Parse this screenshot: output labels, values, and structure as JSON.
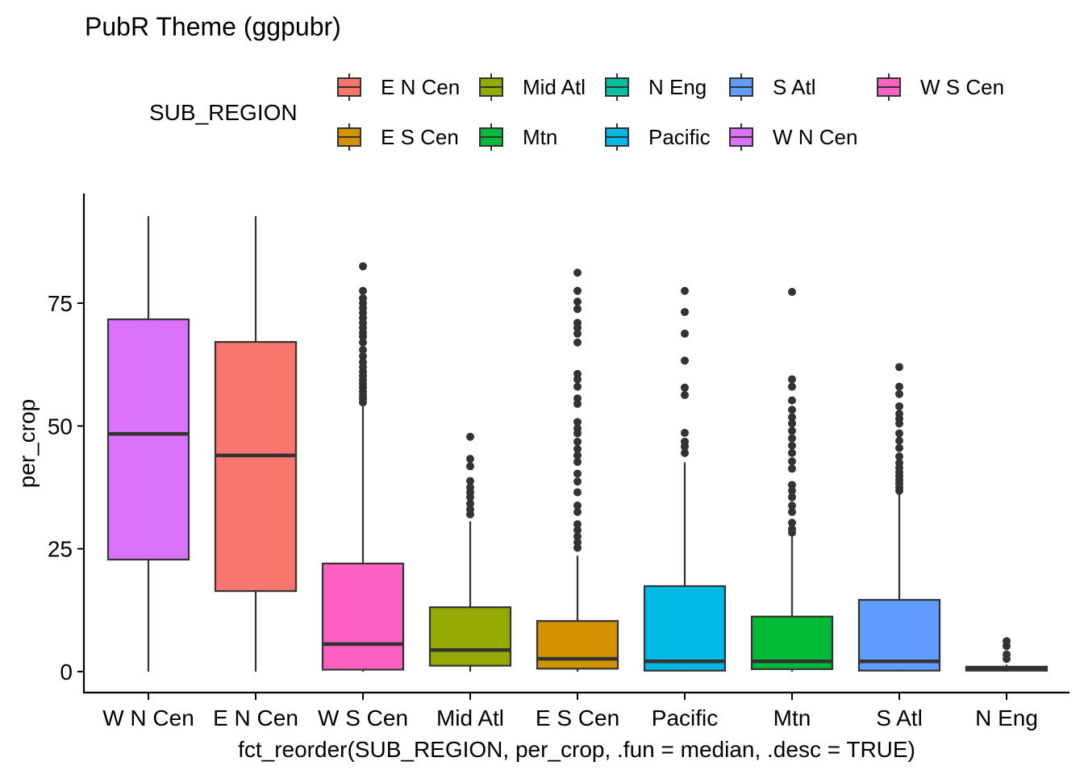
{
  "chart_data": {
    "type": "boxplot",
    "title": "PubR Theme (ggpubr)",
    "xlabel": "fct_reorder(SUB_REGION, per_crop, .fun = median, .desc = TRUE)",
    "ylabel": "per_crop",
    "ylim": [
      -4.5,
      97
    ],
    "yticks": [
      0,
      25,
      50,
      75
    ],
    "grid": false,
    "legend": {
      "title": "SUB_REGION",
      "position": "top",
      "entries": [
        {
          "label": "E N Cen",
          "color": "#F8766D"
        },
        {
          "label": "E S Cen",
          "color": "#D39200"
        },
        {
          "label": "Mid Atl",
          "color": "#93AA00"
        },
        {
          "label": "Mtn",
          "color": "#00BA38"
        },
        {
          "label": "N Eng",
          "color": "#00C19F"
        },
        {
          "label": "Pacific",
          "color": "#00B9E3"
        },
        {
          "label": "S Atl",
          "color": "#619CFF"
        },
        {
          "label": "W N Cen",
          "color": "#DB72FB"
        },
        {
          "label": "W S Cen",
          "color": "#FF61C3"
        }
      ]
    },
    "categories": [
      "W N Cen",
      "E N Cen",
      "W S Cen",
      "Mid Atl",
      "E S Cen",
      "Pacific",
      "Mtn",
      "S Atl",
      "N Eng"
    ],
    "boxes": [
      {
        "name": "W N Cen",
        "color": "#DB72FB",
        "min": 0,
        "q1": 22.8,
        "median": 48.4,
        "q3": 71.7,
        "max": 92.7,
        "outliers": []
      },
      {
        "name": "E N Cen",
        "color": "#F8766D",
        "min": 0,
        "q1": 16.4,
        "median": 44.0,
        "q3": 67.1,
        "max": 92.7,
        "outliers": []
      },
      {
        "name": "W S Cen",
        "color": "#FF61C3",
        "min": 0,
        "q1": 0.4,
        "median": 5.6,
        "q3": 22.0,
        "max": 54.3,
        "outliers": [
          54.8,
          55.5,
          56.2,
          57.0,
          57.8,
          58.6,
          59.4,
          60.2,
          61.0,
          62.0,
          63.0,
          64.2,
          65.5,
          67.0,
          68.2,
          69.0,
          70.0,
          71.0,
          72.0,
          73.0,
          74.0,
          75.0,
          76.0,
          77.5,
          82.5
        ]
      },
      {
        "name": "Mid Atl",
        "color": "#93AA00",
        "min": 0,
        "q1": 1.2,
        "median": 4.4,
        "q3": 13.1,
        "max": 30.6,
        "outliers": [
          32.0,
          33.0,
          34.2,
          35.5,
          36.5,
          37.5,
          38.8,
          41.8,
          43.3,
          47.8
        ]
      },
      {
        "name": "E S Cen",
        "color": "#D39200",
        "min": 0,
        "q1": 0.6,
        "median": 2.6,
        "q3": 10.3,
        "max": 23.6,
        "outliers": [
          25.2,
          26.3,
          27.5,
          28.8,
          30.0,
          32.5,
          33.8,
          36.5,
          38.7,
          40.3,
          42.7,
          44.0,
          45.3,
          46.8,
          48.5,
          49.5,
          50.8,
          54.5,
          55.6,
          58.0,
          59.5,
          60.6,
          67.0,
          68.8,
          70.0,
          71.0,
          73.8,
          75.3,
          77.5,
          81.2
        ]
      },
      {
        "name": "Pacific",
        "color": "#00B9E3",
        "min": 0,
        "q1": 0.2,
        "median": 2.1,
        "q3": 17.4,
        "max": 42.6,
        "outliers": [
          44.5,
          45.8,
          46.8,
          48.6,
          56.3,
          57.8,
          63.3,
          68.8,
          73.2,
          77.5
        ]
      },
      {
        "name": "Mtn",
        "color": "#00BA38",
        "min": 0,
        "q1": 0.5,
        "median": 2.1,
        "q3": 11.2,
        "max": 27.6,
        "outliers": [
          28.3,
          29.0,
          30.3,
          32.5,
          33.8,
          35.5,
          36.8,
          38.0,
          41.3,
          42.8,
          44.5,
          46.0,
          47.5,
          49.0,
          50.5,
          51.8,
          53.3,
          55.2,
          58.0,
          59.5,
          77.3
        ]
      },
      {
        "name": "S Atl",
        "color": "#619CFF",
        "min": 0,
        "q1": 0.2,
        "median": 2.1,
        "q3": 14.6,
        "max": 36.3,
        "outliers": [
          36.8,
          37.5,
          38.3,
          39.0,
          39.8,
          40.6,
          41.5,
          42.5,
          43.8,
          45.5,
          47.0,
          48.5,
          50.5,
          51.5,
          52.5,
          54.0,
          56.5,
          58.0,
          62.0
        ]
      },
      {
        "name": "N Eng",
        "color": "#00C19F",
        "min": 0,
        "q1": 0.2,
        "median": 0.6,
        "q3": 1.0,
        "max": 1.4,
        "outliers": [
          2.6,
          3.5,
          5.2,
          6.2
        ]
      }
    ]
  }
}
